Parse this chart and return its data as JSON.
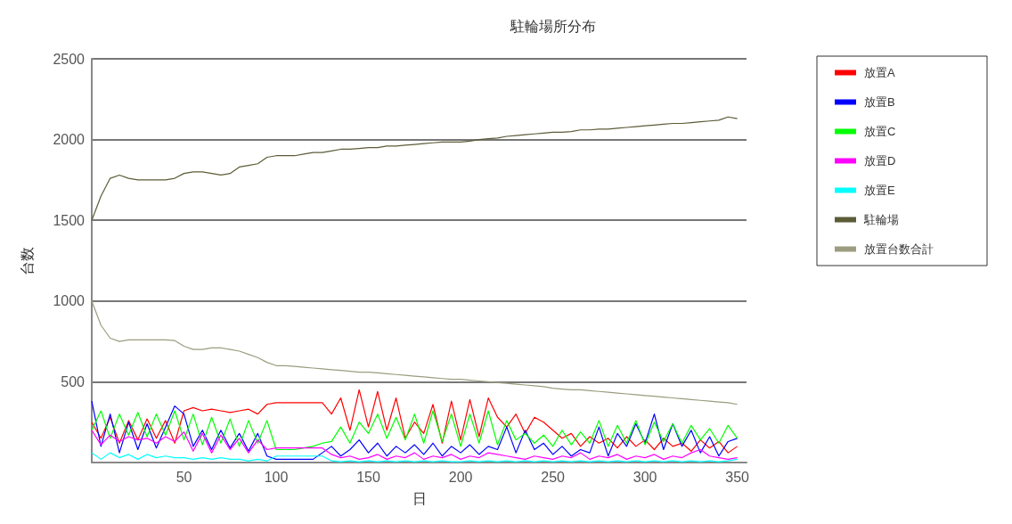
{
  "chart_data": {
    "type": "line",
    "title": "駐輪場所分布",
    "xlabel": "日",
    "ylabel": "台数",
    "x": [
      0,
      5,
      10,
      15,
      20,
      25,
      30,
      35,
      40,
      45,
      50,
      55,
      60,
      65,
      70,
      75,
      80,
      85,
      90,
      95,
      100,
      105,
      110,
      115,
      120,
      125,
      130,
      135,
      140,
      145,
      150,
      155,
      160,
      165,
      170,
      175,
      180,
      185,
      190,
      195,
      200,
      205,
      210,
      215,
      220,
      225,
      230,
      235,
      240,
      245,
      250,
      255,
      260,
      265,
      270,
      275,
      280,
      285,
      290,
      295,
      300,
      305,
      310,
      315,
      320,
      325,
      330,
      335,
      340,
      345,
      350
    ],
    "xlim": [
      0,
      355
    ],
    "xticks": [
      50,
      100,
      150,
      200,
      250,
      300,
      350
    ],
    "ylim": [
      0,
      2500
    ],
    "yticks": [
      500,
      1000,
      1500,
      2000,
      2500
    ],
    "grid": "y",
    "legend": "right",
    "series": [
      {
        "name": "放置A",
        "color": "#ff0000",
        "values": [
          250,
          150,
          280,
          120,
          260,
          140,
          270,
          150,
          260,
          120,
          320,
          340,
          320,
          330,
          320,
          310,
          320,
          330,
          300,
          360,
          370,
          370,
          370,
          370,
          370,
          370,
          300,
          400,
          200,
          450,
          220,
          440,
          200,
          400,
          150,
          250,
          180,
          360,
          120,
          380,
          140,
          390,
          160,
          400,
          280,
          220,
          300,
          180,
          280,
          250,
          200,
          150,
          180,
          100,
          160,
          120,
          150,
          90,
          160,
          100,
          140,
          80,
          150,
          100,
          120,
          70,
          140,
          90,
          130,
          60,
          100
        ]
      },
      {
        "name": "放置B",
        "color": "#0000ff",
        "values": [
          380,
          100,
          300,
          60,
          250,
          80,
          240,
          90,
          220,
          350,
          300,
          100,
          200,
          80,
          200,
          90,
          180,
          70,
          180,
          40,
          20,
          20,
          20,
          20,
          20,
          60,
          100,
          40,
          80,
          140,
          60,
          120,
          40,
          100,
          60,
          110,
          50,
          120,
          40,
          100,
          60,
          110,
          50,
          100,
          80,
          220,
          60,
          200,
          80,
          120,
          50,
          100,
          40,
          80,
          60,
          220,
          40,
          180,
          100,
          240,
          120,
          300,
          80,
          240,
          100,
          200,
          60,
          160,
          40,
          130,
          150
        ]
      },
      {
        "name": "放置C",
        "color": "#00ff00",
        "values": [
          200,
          320,
          150,
          300,
          170,
          310,
          160,
          300,
          170,
          320,
          140,
          300,
          110,
          280,
          120,
          270,
          100,
          260,
          120,
          260,
          80,
          80,
          80,
          90,
          100,
          120,
          130,
          220,
          120,
          250,
          180,
          300,
          150,
          280,
          140,
          300,
          120,
          320,
          130,
          300,
          100,
          300,
          120,
          320,
          110,
          260,
          140,
          180,
          120,
          170,
          100,
          200,
          110,
          190,
          120,
          260,
          100,
          230,
          120,
          260,
          110,
          250,
          130,
          240,
          120,
          230,
          140,
          210,
          120,
          230,
          150
        ]
      },
      {
        "name": "放置D",
        "color": "#ff00ff",
        "values": [
          200,
          110,
          170,
          130,
          160,
          140,
          150,
          120,
          160,
          130,
          190,
          70,
          180,
          60,
          170,
          80,
          150,
          60,
          140,
          80,
          90,
          90,
          90,
          90,
          90,
          90,
          50,
          30,
          40,
          20,
          30,
          50,
          20,
          40,
          30,
          60,
          20,
          40,
          30,
          50,
          20,
          40,
          30,
          60,
          50,
          40,
          30,
          20,
          40,
          30,
          20,
          40,
          30,
          60,
          20,
          40,
          30,
          50,
          20,
          40,
          30,
          50,
          20,
          40,
          30,
          60,
          80,
          40,
          30,
          20,
          30
        ]
      },
      {
        "name": "放置E",
        "color": "#00ffff",
        "values": [
          60,
          20,
          60,
          30,
          50,
          20,
          50,
          30,
          40,
          30,
          30,
          20,
          30,
          20,
          30,
          20,
          20,
          10,
          20,
          10,
          40,
          40,
          40,
          40,
          40,
          40,
          10,
          5,
          10,
          5,
          10,
          5,
          10,
          5,
          10,
          5,
          10,
          5,
          10,
          5,
          5,
          10,
          5,
          10,
          5,
          10,
          5,
          10,
          5,
          10,
          5,
          10,
          5,
          10,
          5,
          10,
          5,
          10,
          5,
          10,
          5,
          10,
          5,
          10,
          5,
          10,
          5,
          10,
          5,
          10,
          20
        ]
      },
      {
        "name": "駐輪場",
        "color": "#5c5c38",
        "values": [
          1500,
          1650,
          1760,
          1780,
          1760,
          1750,
          1750,
          1750,
          1750,
          1760,
          1790,
          1800,
          1800,
          1790,
          1780,
          1790,
          1830,
          1840,
          1850,
          1890,
          1900,
          1900,
          1900,
          1910,
          1920,
          1920,
          1930,
          1940,
          1940,
          1945,
          1950,
          1950,
          1960,
          1960,
          1965,
          1970,
          1975,
          1980,
          1985,
          1985,
          1985,
          1990,
          2000,
          2005,
          2010,
          2020,
          2025,
          2030,
          2035,
          2040,
          2045,
          2045,
          2050,
          2060,
          2060,
          2065,
          2065,
          2070,
          2075,
          2080,
          2085,
          2090,
          2095,
          2100,
          2100,
          2105,
          2110,
          2115,
          2120,
          2140,
          2130
        ]
      },
      {
        "name": "放置台数合計",
        "color": "#9c9c80",
        "values": [
          1000,
          850,
          770,
          750,
          760,
          760,
          760,
          760,
          760,
          755,
          720,
          700,
          700,
          710,
          710,
          700,
          690,
          670,
          650,
          620,
          600,
          600,
          595,
          590,
          585,
          580,
          575,
          570,
          565,
          560,
          560,
          555,
          550,
          545,
          540,
          535,
          530,
          525,
          520,
          515,
          515,
          510,
          505,
          500,
          495,
          490,
          485,
          480,
          475,
          470,
          460,
          455,
          450,
          450,
          445,
          440,
          435,
          430,
          425,
          420,
          415,
          410,
          405,
          400,
          395,
          390,
          385,
          380,
          375,
          370,
          360
        ]
      }
    ]
  }
}
